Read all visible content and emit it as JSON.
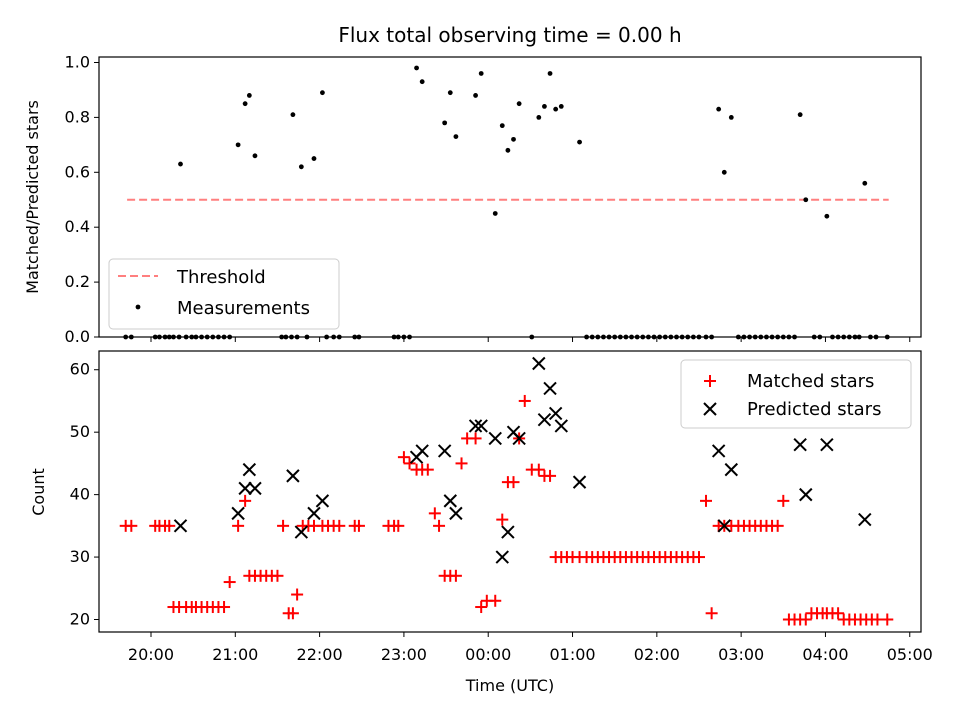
{
  "chart_data": [
    {
      "type": "scatter",
      "title": "Flux total observing time = 0.00 h",
      "ylabel": "Matched/Predicted stars",
      "xlabel": "",
      "xlim": [
        "19:23",
        "05:08"
      ],
      "ylim": [
        0,
        1.02
      ],
      "yticks": [
        "0.0",
        "0.2",
        "0.4",
        "0.6",
        "0.8",
        "1.0"
      ],
      "xticks": [
        "20:00",
        "21:00",
        "22:00",
        "23:00",
        "00:00",
        "01:00",
        "02:00",
        "03:00",
        "04:00",
        "05:00"
      ],
      "legend_placement": "lower-left",
      "threshold": {
        "name": "Threshold",
        "value": 0.5,
        "x_start": "19:43",
        "x_end": "04:45",
        "color": "#ff7f7f",
        "style": "dashed"
      },
      "series": [
        {
          "name": "Measurements",
          "color": "#000000",
          "marker": "dot",
          "x": [
            "20:21",
            "21:02",
            "21:07",
            "21:10",
            "21:14",
            "21:41",
            "21:47",
            "21:56",
            "22:02",
            "23:09",
            "23:13",
            "23:29",
            "23:33",
            "23:37",
            "23:51",
            "23:55",
            "00:05",
            "00:10",
            "00:14",
            "00:18",
            "00:22",
            "00:36",
            "00:40",
            "00:44",
            "00:48",
            "00:52",
            "01:05",
            "02:44",
            "02:48",
            "02:53",
            "03:42",
            "03:46",
            "04:01",
            "04:28",
            "19:42",
            "19:46",
            "20:03",
            "20:06",
            "20:10",
            "20:13",
            "20:16",
            "20:20",
            "20:25",
            "20:29",
            "20:32",
            "20:36",
            "20:40",
            "20:44",
            "20:48",
            "20:52",
            "20:56",
            "21:33",
            "21:36",
            "21:40",
            "21:44",
            "21:51",
            "22:05",
            "22:10",
            "22:14",
            "22:25",
            "22:28",
            "22:53",
            "22:56",
            "23:00",
            "23:04",
            "00:31",
            "01:10",
            "01:14",
            "01:18",
            "01:22",
            "01:26",
            "01:30",
            "01:34",
            "01:38",
            "01:42",
            "01:46",
            "01:50",
            "01:54",
            "01:58",
            "02:02",
            "02:06",
            "02:10",
            "02:14",
            "02:18",
            "02:22",
            "02:26",
            "02:30",
            "02:35",
            "02:39",
            "02:58",
            "03:02",
            "03:06",
            "03:10",
            "03:14",
            "03:18",
            "03:22",
            "03:26",
            "03:30",
            "03:34",
            "03:38",
            "03:52",
            "03:56",
            "04:05",
            "04:09",
            "04:13",
            "04:17",
            "04:21",
            "04:24",
            "04:32",
            "04:36",
            "04:44"
          ],
          "y": [
            0.63,
            0.7,
            0.85,
            0.88,
            0.66,
            0.81,
            0.62,
            0.65,
            0.89,
            0.98,
            0.93,
            0.78,
            0.89,
            0.73,
            0.88,
            0.96,
            0.45,
            0.77,
            0.68,
            0.72,
            0.85,
            0.8,
            0.84,
            0.96,
            0.83,
            0.84,
            0.71,
            0.83,
            0.6,
            0.8,
            0.81,
            0.5,
            0.44,
            0.56,
            0,
            0,
            0,
            0,
            0,
            0,
            0,
            0,
            0,
            0,
            0,
            0,
            0,
            0,
            0,
            0,
            0,
            0,
            0,
            0,
            0,
            0,
            0,
            0,
            0,
            0,
            0,
            0,
            0,
            0,
            0,
            0,
            0,
            0,
            0,
            0,
            0,
            0,
            0,
            0,
            0,
            0,
            0,
            0,
            0,
            0,
            0,
            0,
            0,
            0,
            0,
            0,
            0,
            0,
            0,
            0,
            0,
            0,
            0,
            0,
            0,
            0,
            0,
            0,
            0,
            0,
            0,
            0,
            0,
            0,
            0,
            0,
            0,
            0,
            0,
            0,
            0
          ]
        }
      ]
    },
    {
      "type": "scatter",
      "title": "",
      "ylabel": "Count",
      "xlabel": "Time (UTC)",
      "xlim": [
        "19:23",
        "05:08"
      ],
      "ylim": [
        18,
        63
      ],
      "yticks": [
        "20",
        "30",
        "40",
        "50",
        "60"
      ],
      "xticks": [
        "20:00",
        "21:00",
        "22:00",
        "23:00",
        "00:00",
        "01:00",
        "02:00",
        "03:00",
        "04:00",
        "05:00"
      ],
      "legend_placement": "upper-right",
      "series": [
        {
          "name": "Matched stars",
          "color": "#ff0000",
          "marker": "plus",
          "x": [
            "19:42",
            "19:46",
            "20:03",
            "20:06",
            "20:10",
            "20:13",
            "20:16",
            "20:20",
            "20:25",
            "20:29",
            "20:32",
            "20:36",
            "20:40",
            "20:44",
            "20:48",
            "20:52",
            "20:56",
            "21:02",
            "21:07",
            "21:10",
            "21:14",
            "21:18",
            "21:22",
            "21:26",
            "21:30",
            "21:34",
            "21:38",
            "21:41",
            "21:44",
            "21:48",
            "21:52",
            "21:56",
            "22:02",
            "22:06",
            "22:10",
            "22:14",
            "22:25",
            "22:28",
            "22:49",
            "22:53",
            "22:56",
            "23:00",
            "23:04",
            "23:09",
            "23:13",
            "23:17",
            "23:22",
            "23:25",
            "23:29",
            "23:33",
            "23:37",
            "23:41",
            "23:45",
            "23:51",
            "23:55",
            "23:59",
            "00:05",
            "00:10",
            "00:14",
            "00:18",
            "00:22",
            "00:26",
            "00:31",
            "00:36",
            "00:40",
            "00:44",
            "00:48",
            "00:52",
            "00:56",
            "01:00",
            "01:05",
            "01:10",
            "01:14",
            "01:18",
            "01:22",
            "01:26",
            "01:30",
            "01:34",
            "01:38",
            "01:42",
            "01:46",
            "01:50",
            "01:54",
            "01:58",
            "02:02",
            "02:06",
            "02:10",
            "02:14",
            "02:18",
            "02:22",
            "02:26",
            "02:30",
            "02:35",
            "02:39",
            "02:44",
            "02:48",
            "02:53",
            "02:58",
            "03:02",
            "03:06",
            "03:10",
            "03:14",
            "03:18",
            "03:22",
            "03:26",
            "03:30",
            "03:34",
            "03:38",
            "03:42",
            "03:46",
            "03:50",
            "03:54",
            "03:58",
            "04:01",
            "04:05",
            "04:09",
            "04:13",
            "04:17",
            "04:21",
            "04:25",
            "04:29",
            "04:33",
            "04:37",
            "04:44"
          ],
          "y": [
            35,
            35,
            35,
            35,
            35,
            35,
            22,
            22,
            22,
            22,
            22,
            22,
            22,
            22,
            22,
            22,
            26,
            35,
            39,
            27,
            27,
            27,
            27,
            27,
            27,
            35,
            21,
            21,
            24,
            35,
            35,
            35,
            35,
            35,
            35,
            35,
            35,
            35,
            35,
            35,
            35,
            46,
            45,
            44,
            44,
            44,
            37,
            35,
            27,
            27,
            27,
            45,
            49,
            49,
            22,
            23,
            23,
            36,
            42,
            42,
            49,
            55,
            44,
            44,
            43,
            43,
            30,
            30,
            30,
            30,
            30,
            30,
            30,
            30,
            30,
            30,
            30,
            30,
            30,
            30,
            30,
            30,
            30,
            30,
            30,
            30,
            30,
            30,
            30,
            30,
            30,
            30,
            39,
            21,
            35,
            35,
            35,
            35,
            35,
            35,
            35,
            35,
            35,
            35,
            35,
            39,
            20,
            20,
            20,
            20,
            21,
            21,
            21,
            21,
            21,
            21,
            20,
            20,
            20,
            20,
            20,
            20,
            20,
            20
          ]
        },
        {
          "name": "Predicted stars",
          "color": "#000000",
          "marker": "x",
          "x": [
            "20:21",
            "21:02",
            "21:07",
            "21:10",
            "21:14",
            "21:41",
            "21:47",
            "21:56",
            "22:02",
            "23:09",
            "23:13",
            "23:29",
            "23:33",
            "23:37",
            "23:51",
            "23:55",
            "00:05",
            "00:10",
            "00:14",
            "00:18",
            "00:22",
            "00:36",
            "00:40",
            "00:44",
            "00:48",
            "00:52",
            "01:05",
            "02:44",
            "02:53",
            "02:48",
            "03:42",
            "03:46",
            "04:01",
            "04:28"
          ],
          "y": [
            35,
            37,
            41,
            44,
            41,
            43,
            34,
            37,
            39,
            46,
            47,
            47,
            39,
            37,
            51,
            51,
            49,
            30,
            34,
            50,
            49,
            61,
            52,
            57,
            53,
            51,
            42,
            47,
            44,
            35,
            48,
            40,
            48,
            36
          ]
        }
      ]
    }
  ]
}
